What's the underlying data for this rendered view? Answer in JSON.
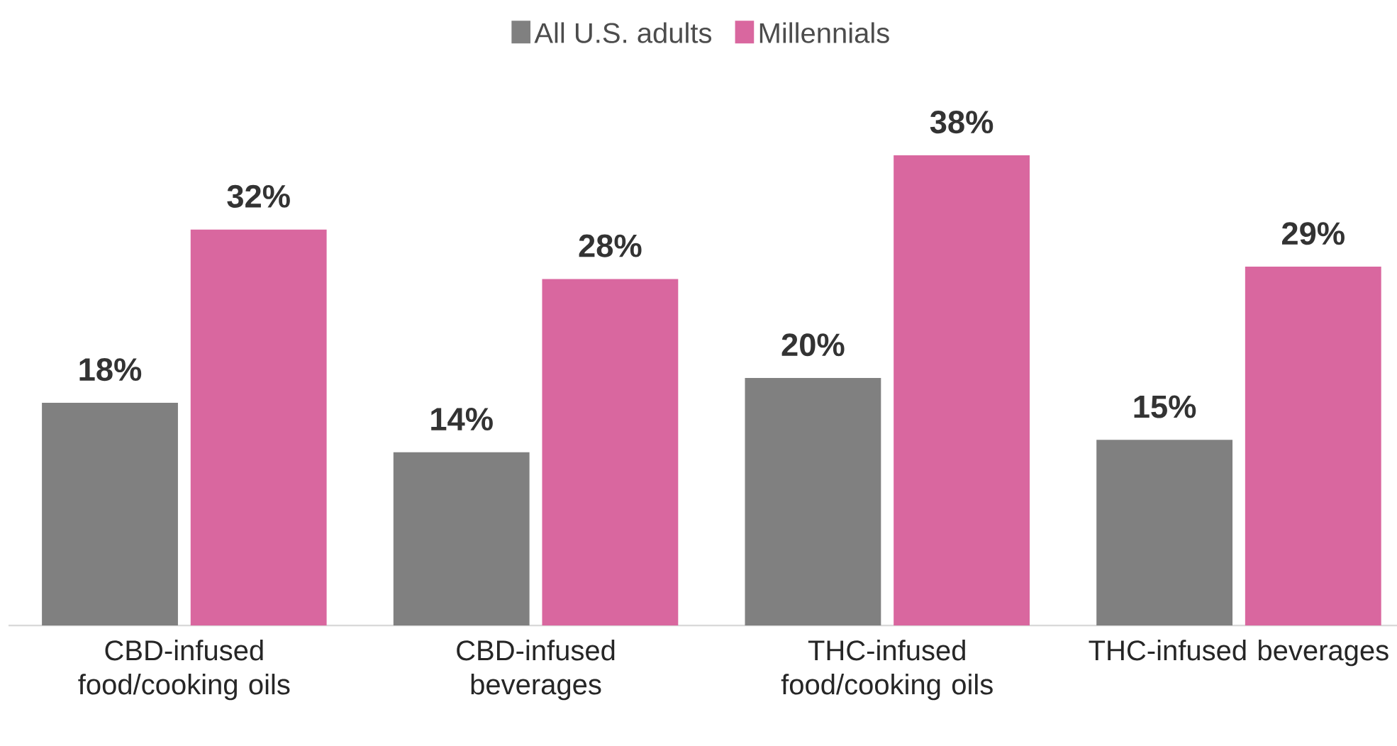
{
  "chart_data": {
    "type": "bar",
    "categories": [
      "CBD-infused food/cooking oils",
      "CBD-infused beverages",
      "THC-infused food/cooking oils",
      "THC-infused beverages"
    ],
    "series": [
      {
        "name": "All U.S. adults",
        "color": "#808080",
        "values": [
          18,
          14,
          20,
          15
        ],
        "value_labels": [
          "18%",
          "14%",
          "20%",
          "15%"
        ]
      },
      {
        "name": "Millennials",
        "color": "#d9679f",
        "values": [
          32,
          28,
          38,
          29
        ],
        "value_labels": [
          "32%",
          "28%",
          "38%",
          "29%"
        ]
      }
    ],
    "legend": "top"
  }
}
